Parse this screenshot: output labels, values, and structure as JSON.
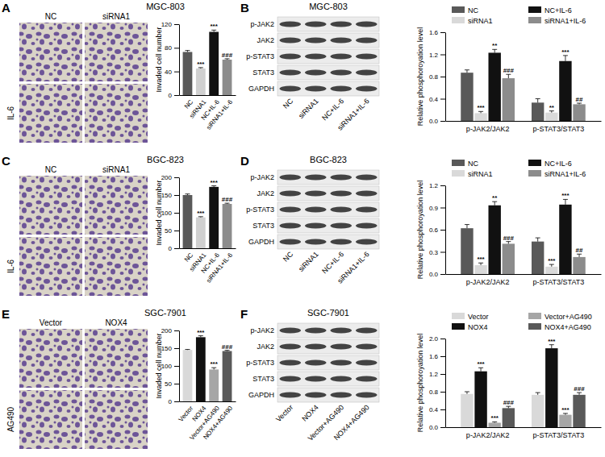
{
  "images": [
    {
      "letter": "A",
      "title": "MGC-803",
      "columns": [
        "NC",
        "siRNA1"
      ],
      "row_label": "IL-6"
    },
    {
      "letter": "B",
      "title": "MGC-803",
      "rows": [
        "p-JAK2",
        "JAK2",
        "p-STAT3",
        "STAT3",
        "GAPDH"
      ],
      "lanes": [
        "NC",
        "siRNA1",
        "NC+IL-6",
        "siRNA1+IL-6"
      ]
    },
    {
      "letter": "C",
      "title": "BGC-823",
      "columns": [
        "NC",
        "siRNA1"
      ],
      "row_label": "IL-6"
    },
    {
      "letter": "D",
      "title": "BGC-823",
      "rows": [
        "p-JAK2",
        "JAK2",
        "p-STAT3",
        "STAT3",
        "GAPDH"
      ],
      "lanes": [
        "NC",
        "siRNA1",
        "NC+IL-6",
        "siRNA1+IL-6"
      ]
    },
    {
      "letter": "E",
      "title": "SGC-7901",
      "columns": [
        "Vector",
        "NOX4"
      ],
      "row_label": "AG490"
    },
    {
      "letter": "F",
      "title": "SGC-7901",
      "rows": [
        "p-JAK2",
        "JAK2",
        "p-STAT3",
        "STAT3",
        "GAPDH"
      ],
      "lanes": [
        "Vector",
        "NOX4",
        "Vector+AG490",
        "NOX4+AG490"
      ]
    }
  ],
  "chart_data": [
    {
      "type": "bar",
      "categories": [
        "NC",
        "siRNA1",
        "NC+IL-6",
        "siRNA1+IL-6"
      ],
      "values": [
        73,
        45,
        107,
        60
      ],
      "errors": [
        2.5,
        1.5,
        3,
        1.5
      ],
      "colors": [
        "#595959",
        "#d0d0d0",
        "#111111",
        "#8c8c8c"
      ],
      "annotations": [
        null,
        "***",
        "***",
        "###"
      ],
      "y_label": "Invaded cell number",
      "ylim": [
        0,
        120
      ],
      "yticks": [
        0,
        40,
        80,
        120
      ]
    },
    {
      "type": "bar",
      "categories": [
        "p-JAK2/JAK2",
        "p-STAT3/STAT3"
      ],
      "legend": "top",
      "series": [
        {
          "name": "NC",
          "color": "#595959",
          "values": [
            0.87,
            0.33
          ],
          "errors": [
            0.05,
            0.07
          ],
          "annotations": [
            null,
            null
          ]
        },
        {
          "name": "siRNA1",
          "color": "#d9d9d9",
          "values": [
            0.14,
            0.15
          ],
          "errors": [
            0.03,
            0.03
          ],
          "annotations": [
            "***",
            "**"
          ]
        },
        {
          "name": "NC+IL-6",
          "color": "#111111",
          "values": [
            1.23,
            1.08
          ],
          "errors": [
            0.06,
            0.1
          ],
          "annotations": [
            "**",
            "***"
          ]
        },
        {
          "name": "siRNA1+IL-6",
          "color": "#8c8c8c",
          "values": [
            0.77,
            0.3
          ],
          "errors": [
            0.07,
            0.02
          ],
          "annotations": [
            "###",
            "##"
          ]
        }
      ],
      "y_label": "Relative phosphoroyation level",
      "ylim": [
        0,
        1.6
      ],
      "yticks": [
        {
          "value": 0,
          "label": "0.0"
        },
        0.4,
        0.8,
        1.2,
        1.6
      ]
    },
    {
      "type": "bar",
      "categories": [
        "NC",
        "siRNA1",
        "NC+IL-6",
        "siRNA1+IL-6"
      ],
      "values": [
        150,
        87,
        173,
        125
      ],
      "errors": [
        3,
        2,
        3,
        2
      ],
      "colors": [
        "#595959",
        "#d0d0d0",
        "#111111",
        "#8c8c8c"
      ],
      "annotations": [
        null,
        "***",
        "***",
        "###"
      ],
      "y_label": "Invaded cell number",
      "ylim": [
        0,
        200
      ],
      "yticks": [
        0,
        50,
        100,
        150,
        200
      ]
    },
    {
      "type": "bar",
      "categories": [
        "p-JAK2/JAK2",
        "p-STAT3/STAT3"
      ],
      "legend": "top",
      "series": [
        {
          "name": "NC",
          "color": "#595959",
          "values": [
            0.62,
            0.44
          ],
          "errors": [
            0.05,
            0.05
          ],
          "annotations": [
            null,
            null
          ]
        },
        {
          "name": "siRNA1",
          "color": "#d9d9d9",
          "values": [
            0.12,
            0.1
          ],
          "errors": [
            0.03,
            0.03
          ],
          "annotations": [
            "***",
            "***"
          ]
        },
        {
          "name": "NC+IL-6",
          "color": "#111111",
          "values": [
            0.93,
            0.94
          ],
          "errors": [
            0.05,
            0.07
          ],
          "annotations": [
            "**",
            "***"
          ]
        },
        {
          "name": "siRNA1+IL-6",
          "color": "#8c8c8c",
          "values": [
            0.41,
            0.23
          ],
          "errors": [
            0.03,
            0.04
          ],
          "annotations": [
            "###",
            "##"
          ]
        }
      ],
      "y_label": "Relative phosphoroyation level",
      "ylim": [
        0,
        1.2
      ],
      "yticks": [
        {
          "value": 0,
          "label": "0.0"
        },
        0.3,
        0.6,
        0.9,
        1.2
      ]
    },
    {
      "type": "bar",
      "categories": [
        "Vector",
        "NOX4",
        "Vector+AG490",
        "NOX4+AG490"
      ],
      "values": [
        145,
        181,
        90,
        142
      ],
      "errors": [
        1.5,
        4,
        5,
        2
      ],
      "colors": [
        "#d9d9d9",
        "#111111",
        "#a6a6a6",
        "#595959"
      ],
      "annotations": [
        null,
        "***",
        "***",
        "###"
      ],
      "y_label": "Invaded cell number",
      "ylim": [
        0,
        200
      ],
      "yticks": [
        0,
        50,
        100,
        150,
        200
      ]
    },
    {
      "type": "bar",
      "categories": [
        "p-JAK2/JAK2",
        "p-STAT3/STAT3"
      ],
      "legend": "top",
      "series": [
        {
          "name": "Vector",
          "color": "#d9d9d9",
          "values": [
            0.75,
            0.73
          ],
          "errors": [
            0.05,
            0.05
          ],
          "annotations": [
            null,
            null
          ]
        },
        {
          "name": "NOX4",
          "color": "#111111",
          "values": [
            1.26,
            1.78
          ],
          "errors": [
            0.08,
            0.08
          ],
          "annotations": [
            "***",
            "***"
          ]
        },
        {
          "name": "Vector+AG490",
          "color": "#a6a6a6",
          "values": [
            0.1,
            0.28
          ],
          "errors": [
            0.02,
            0.03
          ],
          "annotations": [
            "***",
            "***"
          ]
        },
        {
          "name": "NOX4+AG490",
          "color": "#595959",
          "values": [
            0.43,
            0.73
          ],
          "errors": [
            0.04,
            0.05
          ],
          "annotations": [
            "###",
            "###"
          ]
        }
      ],
      "y_label": "Relative phosphoroyation level",
      "ylim": [
        0,
        2.0
      ],
      "yticks": [
        {
          "value": 0,
          "label": "0.0"
        },
        0.4,
        0.8,
        1.2,
        1.6,
        {
          "value": 2.0,
          "label": "2.0"
        }
      ]
    }
  ]
}
